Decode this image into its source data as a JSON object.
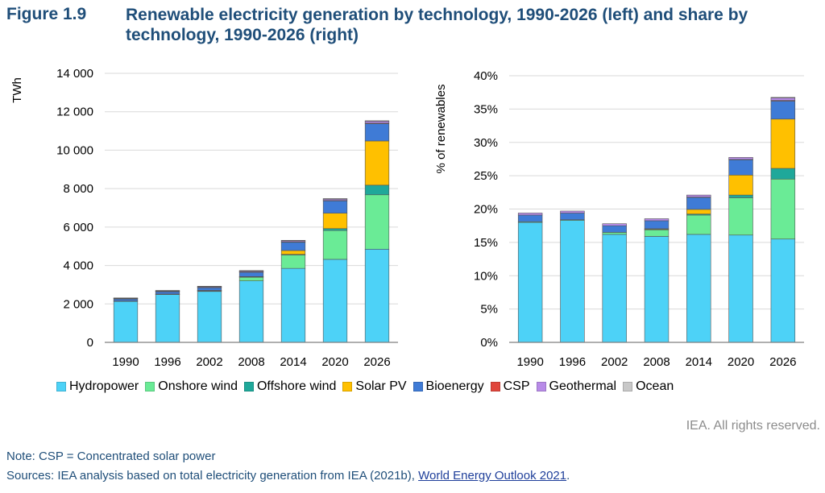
{
  "figure_label": "Figure 1.9",
  "figure_title": "Renewable electricity generation by technology, 1990-2026 (left) and share by technology, 1990-2026 (right)",
  "colors": {
    "Hydropower": "#4dd2f7",
    "Onshore wind": "#6aeb96",
    "Offshore wind": "#1fa89a",
    "Solar PV": "#ffc000",
    "Bioenergy": "#3f7bd6",
    "CSP": "#e0463c",
    "Geothermal": "#b88be8",
    "Ocean": "#c8c8c8"
  },
  "legend": [
    "Hydropower",
    "Onshore wind",
    "Offshore wind",
    "Solar PV",
    "Bioenergy",
    "CSP",
    "Geothermal",
    "Ocean"
  ],
  "chart_data": [
    {
      "type": "bar",
      "stacked": true,
      "ylabel": "TWh",
      "ylim": [
        0,
        14000
      ],
      "yticks": [
        0,
        2000,
        4000,
        6000,
        8000,
        10000,
        12000,
        14000
      ],
      "ytick_labels": [
        "0",
        "2 000",
        "4 000",
        "6 000",
        "8 000",
        "10 000",
        "12 000",
        "14 000"
      ],
      "categories": [
        "1990",
        "1996",
        "2002",
        "2008",
        "2014",
        "2020",
        "2026"
      ],
      "grid": true,
      "series": [
        {
          "name": "Hydropower",
          "values": [
            2150,
            2500,
            2650,
            3200,
            3850,
            4320,
            4850
          ]
        },
        {
          "name": "Onshore wind",
          "values": [
            5,
            15,
            50,
            200,
            700,
            1500,
            2830
          ]
        },
        {
          "name": "Offshore wind",
          "values": [
            0,
            0,
            2,
            10,
            30,
            100,
            500
          ]
        },
        {
          "name": "Solar PV",
          "values": [
            0,
            1,
            2,
            15,
            200,
            800,
            2300
          ]
        },
        {
          "name": "Bioenergy",
          "values": [
            120,
            140,
            160,
            240,
            440,
            650,
            900
          ]
        },
        {
          "name": "CSP",
          "values": [
            1,
            1,
            1,
            2,
            10,
            14,
            30
          ]
        },
        {
          "name": "Geothermal",
          "values": [
            35,
            40,
            55,
            65,
            75,
            90,
            110
          ]
        },
        {
          "name": "Ocean",
          "values": [
            1,
            1,
            1,
            1,
            1,
            2,
            10
          ]
        }
      ]
    },
    {
      "type": "bar",
      "stacked": true,
      "ylabel": "% of renewables",
      "ylim": [
        0,
        40
      ],
      "yticks": [
        0,
        5,
        10,
        15,
        20,
        25,
        30,
        35,
        40
      ],
      "ytick_labels": [
        "0%",
        "5%",
        "10%",
        "15%",
        "20%",
        "25%",
        "30%",
        "35%",
        "40%"
      ],
      "categories": [
        "1990",
        "1996",
        "2002",
        "2008",
        "2014",
        "2020",
        "2026"
      ],
      "grid": true,
      "series": [
        {
          "name": "Hydropower",
          "values": [
            18.0,
            18.3,
            16.2,
            15.9,
            16.2,
            16.1,
            15.5
          ]
        },
        {
          "name": "Onshore wind",
          "values": [
            0.1,
            0.1,
            0.3,
            1.0,
            2.9,
            5.6,
            9.0
          ]
        },
        {
          "name": "Offshore wind",
          "values": [
            0,
            0,
            0,
            0.05,
            0.15,
            0.4,
            1.6
          ]
        },
        {
          "name": "Solar PV",
          "values": [
            0,
            0,
            0,
            0.1,
            0.7,
            3.0,
            7.4
          ]
        },
        {
          "name": "Bioenergy",
          "values": [
            1.0,
            1.0,
            1.0,
            1.2,
            1.8,
            2.3,
            2.7
          ]
        },
        {
          "name": "CSP",
          "values": [
            0,
            0,
            0,
            0,
            0.05,
            0.05,
            0.1
          ]
        },
        {
          "name": "Geothermal",
          "values": [
            0.3,
            0.3,
            0.3,
            0.3,
            0.3,
            0.3,
            0.4
          ]
        },
        {
          "name": "Ocean",
          "values": [
            0,
            0,
            0,
            0,
            0,
            0,
            0.05
          ]
        }
      ]
    }
  ],
  "rights": "IEA. All rights reserved.",
  "note": "Note: CSP = Concentrated solar power",
  "sources_prefix": "Sources: IEA analysis based on total electricity generation from IEA (2021b), ",
  "sources_link": "World Energy Outlook 2021",
  "sources_suffix": "."
}
